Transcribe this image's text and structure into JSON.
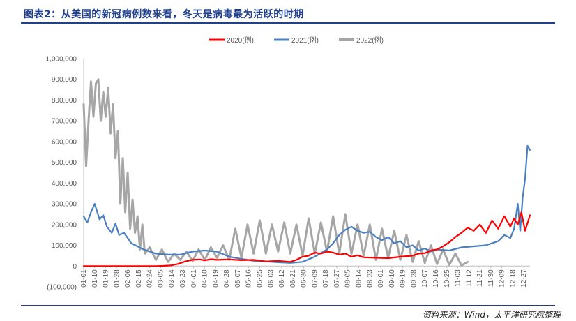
{
  "title": "图表2：从美国的新冠病例数来看，冬天是病毒最为活跃的时期",
  "source": "资料来源：Wind，太平洋研究院整理",
  "chart_data": {
    "type": "line",
    "xlabel": "",
    "ylabel": "",
    "ylim": [
      -100000,
      1000000
    ],
    "grid": false,
    "legend_position": "top-center",
    "y_ticks": [
      -100000,
      0,
      100000,
      200000,
      300000,
      400000,
      500000,
      600000,
      700000,
      800000,
      900000,
      1000000
    ],
    "y_tick_labels": [
      "(100,000)",
      "0",
      "100,000",
      "200,000",
      "300,000",
      "400,000",
      "500,000",
      "600,000",
      "700,000",
      "800,000",
      "900,000",
      "1,000,000"
    ],
    "x_tick_labels": [
      "01-01",
      "01-10",
      "01-19",
      "01-28",
      "02-06",
      "02-15",
      "02-24",
      "03-05",
      "03-14",
      "03-23",
      "04-01",
      "04-10",
      "04-19",
      "04-28",
      "05-07",
      "05-16",
      "05-25",
      "06-03",
      "06-12",
      "06-21",
      "06-30",
      "07-09",
      "07-18",
      "07-27",
      "08-05",
      "08-14",
      "08-23",
      "09-01",
      "09-10",
      "09-19",
      "09-28",
      "10-07",
      "10-16",
      "10-25",
      "11-03",
      "11-12",
      "11-21",
      "11-30",
      "12-09",
      "12-18",
      "12-27"
    ],
    "x_day_range": [
      1,
      366
    ],
    "series": [
      {
        "name": "2020(例)",
        "color": "#ff0000",
        "x": [
          1,
          60,
          66,
          72,
          78,
          84,
          90,
          96,
          100,
          105,
          110,
          120,
          130,
          140,
          150,
          160,
          170,
          175,
          180,
          185,
          190,
          195,
          200,
          205,
          210,
          215,
          220,
          225,
          230,
          240,
          250,
          260,
          270,
          275,
          280,
          285,
          290,
          295,
          300,
          305,
          310,
          315,
          320,
          325,
          330,
          335,
          340,
          345,
          350,
          353,
          356,
          359,
          362,
          366
        ],
        "y": [
          0,
          0,
          1000,
          3000,
          10000,
          22000,
          30000,
          32000,
          27000,
          33000,
          30000,
          32000,
          28000,
          30000,
          22000,
          25000,
          20000,
          30000,
          45000,
          50000,
          65000,
          60000,
          70000,
          65000,
          55000,
          60000,
          45000,
          52000,
          42000,
          40000,
          38000,
          45000,
          50000,
          60000,
          62000,
          75000,
          80000,
          95000,
          115000,
          140000,
          160000,
          185000,
          170000,
          200000,
          160000,
          220000,
          180000,
          240000,
          190000,
          230000,
          200000,
          260000,
          170000,
          245000
        ]
      },
      {
        "name": "2021(例)",
        "color": "#4a7fc0",
        "x": [
          1,
          4,
          7,
          10,
          14,
          17,
          20,
          24,
          27,
          30,
          34,
          40,
          45,
          50,
          55,
          60,
          70,
          80,
          90,
          100,
          110,
          120,
          130,
          140,
          150,
          160,
          170,
          180,
          190,
          200,
          205,
          210,
          215,
          220,
          225,
          230,
          235,
          240,
          245,
          250,
          255,
          260,
          265,
          270,
          275,
          280,
          285,
          290,
          300,
          310,
          320,
          330,
          340,
          345,
          350,
          353,
          356,
          358,
          360,
          362,
          364,
          366
        ],
        "y": [
          240000,
          210000,
          260000,
          300000,
          225000,
          245000,
          190000,
          160000,
          205000,
          150000,
          160000,
          110000,
          95000,
          80000,
          70000,
          60000,
          55000,
          55000,
          70000,
          75000,
          70000,
          45000,
          35000,
          25000,
          22000,
          18000,
          15000,
          20000,
          45000,
          80000,
          110000,
          150000,
          175000,
          190000,
          170000,
          160000,
          165000,
          140000,
          125000,
          140000,
          110000,
          120000,
          90000,
          100000,
          75000,
          85000,
          70000,
          80000,
          75000,
          90000,
          95000,
          100000,
          120000,
          150000,
          135000,
          180000,
          300000,
          170000,
          330000,
          420000,
          580000,
          560000
        ]
      },
      {
        "name": "2022(例)",
        "color": "#a6a6a6",
        "x": [
          1,
          3,
          5,
          7,
          9,
          11,
          13,
          15,
          17,
          19,
          21,
          23,
          25,
          27,
          29,
          31,
          33,
          35,
          37,
          39,
          41,
          43,
          45,
          47,
          49,
          51,
          55,
          60,
          65,
          70,
          75,
          80,
          85,
          90,
          95,
          100,
          105,
          110,
          115,
          120,
          125,
          130,
          135,
          140,
          145,
          150,
          155,
          160,
          165,
          170,
          175,
          180,
          185,
          190,
          195,
          200,
          205,
          210,
          215,
          220,
          225,
          230,
          235,
          240,
          245,
          250,
          255,
          260,
          265,
          270,
          275,
          280,
          285,
          290,
          295,
          300,
          305,
          310,
          315
        ],
        "y": [
          780000,
          480000,
          700000,
          890000,
          720000,
          880000,
          900000,
          700000,
          840000,
          720000,
          860000,
          640000,
          780000,
          520000,
          650000,
          300000,
          520000,
          260000,
          450000,
          180000,
          320000,
          160000,
          240000,
          80000,
          200000,
          60000,
          90000,
          30000,
          80000,
          20000,
          60000,
          30000,
          70000,
          25000,
          80000,
          30000,
          90000,
          40000,
          100000,
          30000,
          180000,
          40000,
          200000,
          60000,
          220000,
          60000,
          200000,
          70000,
          210000,
          60000,
          200000,
          50000,
          230000,
          60000,
          210000,
          70000,
          240000,
          60000,
          250000,
          60000,
          200000,
          50000,
          200000,
          30000,
          180000,
          40000,
          170000,
          30000,
          150000,
          20000,
          120000,
          15000,
          100000,
          10000,
          80000,
          5000,
          60000,
          3000,
          20000
        ]
      }
    ]
  }
}
